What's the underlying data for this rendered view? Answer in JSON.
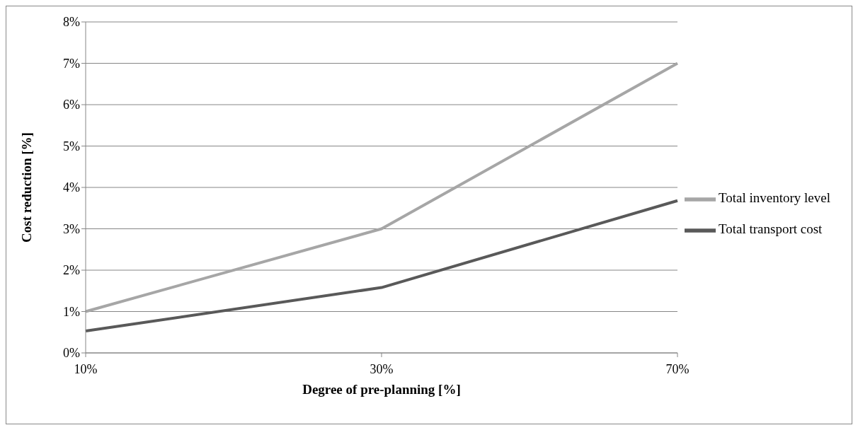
{
  "chart_data": {
    "type": "line",
    "xlabel": "Degree of pre-planning [%]",
    "ylabel": "Cost reduction [%]",
    "categories": [
      "10%",
      "30%",
      "70%"
    ],
    "series": [
      {
        "name": "Total transport cost",
        "color": "#595959",
        "values": [
          0.53,
          1.58,
          3.68
        ]
      },
      {
        "name": "Total inventory level",
        "color": "#a6a6a6",
        "values": [
          1,
          3,
          7
        ]
      }
    ],
    "ylim": [
      0,
      8
    ],
    "yticks": [
      {
        "value": 0,
        "label": "0%"
      },
      {
        "value": 1,
        "label": "1%"
      },
      {
        "value": 2,
        "label": "2%"
      },
      {
        "value": 3,
        "label": "3%"
      },
      {
        "value": 4,
        "label": "4%"
      },
      {
        "value": 5,
        "label": "5%"
      },
      {
        "value": 6,
        "label": "6%"
      },
      {
        "value": 7,
        "label": "7%"
      },
      {
        "value": 8,
        "label": "8%"
      }
    ],
    "grid": "y",
    "legend": "right",
    "marker": "none",
    "line_style": "solid"
  }
}
